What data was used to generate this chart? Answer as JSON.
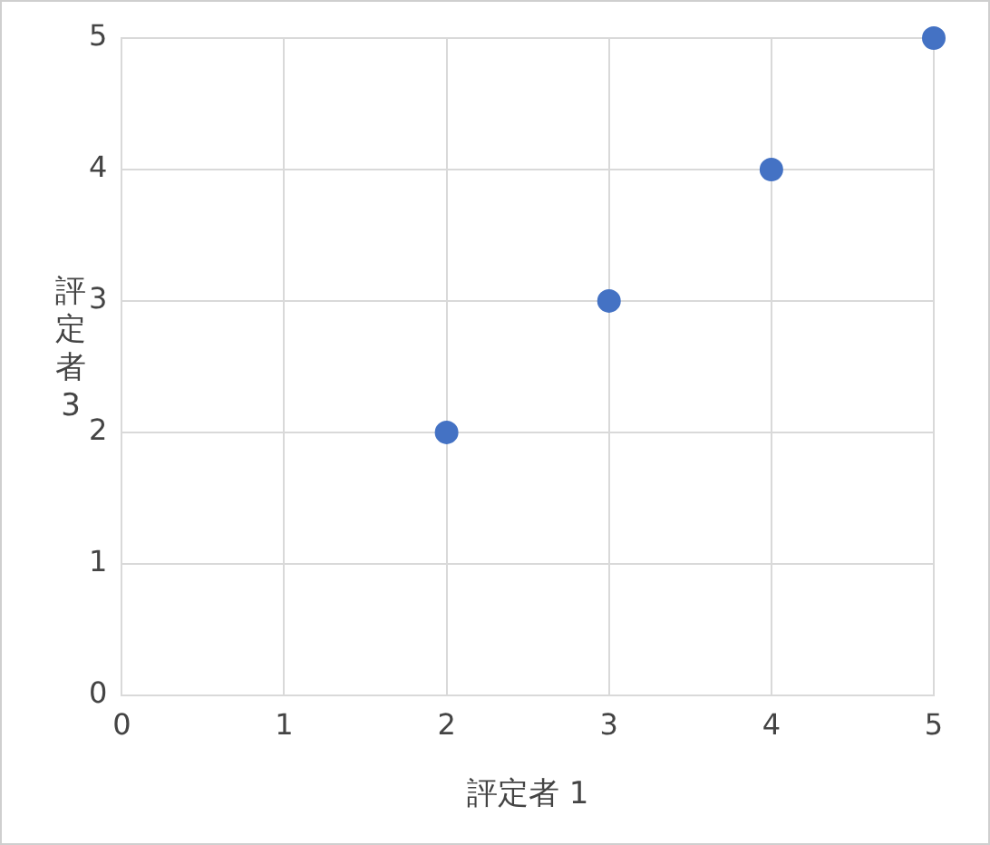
{
  "chart_data": {
    "type": "scatter",
    "xlabel": "評定者 1",
    "ylabel": "評定者 3",
    "x": [
      2,
      3,
      4,
      5
    ],
    "series": [
      {
        "color": "#4472c4",
        "values": [
          2,
          3,
          4,
          5
        ]
      }
    ],
    "xlim": [
      0,
      5
    ],
    "xticks": [
      0,
      1,
      2,
      3,
      4,
      5
    ],
    "ylim": [
      0,
      5
    ],
    "yticks": [
      0,
      1,
      2,
      3,
      4,
      5
    ],
    "grid": true,
    "legend": false,
    "marker": "circle"
  }
}
